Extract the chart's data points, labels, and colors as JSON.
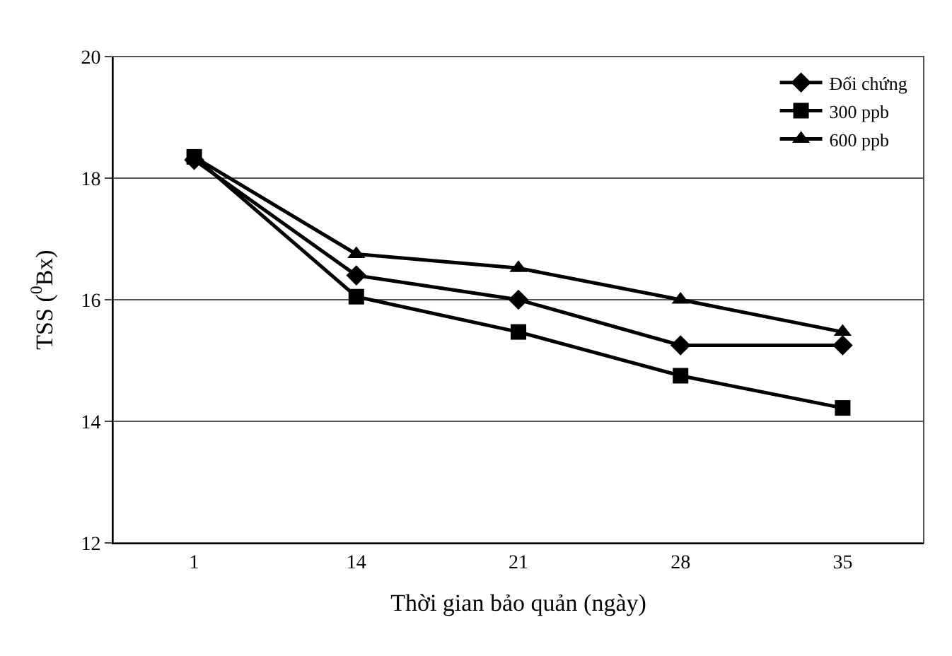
{
  "chart_data": {
    "type": "line",
    "xlabel": "Thời gian bảo quản (ngày)",
    "ylabel": "TSS ($^{0}$Bx)",
    "categories": [
      "1",
      "14",
      "21",
      "28",
      "35"
    ],
    "series": [
      {
        "name": "Đối chứng",
        "color": "#000000",
        "marker": "diamond",
        "values": [
          18.3,
          16.4,
          16.0,
          15.25,
          15.25
        ]
      },
      {
        "name": "300 ppb",
        "color": "#000000",
        "marker": "square",
        "values": [
          18.35,
          16.05,
          15.47,
          14.75,
          14.22
        ]
      },
      {
        "name": "600 ppb",
        "color": "#000000",
        "marker": "triangle",
        "values": [
          18.35,
          16.75,
          16.52,
          16.0,
          15.47
        ]
      }
    ],
    "ylim": [
      12,
      20
    ],
    "yticks": [
      12,
      14,
      16,
      18,
      20
    ],
    "grid": "y",
    "legend": "top right",
    "line_style": "solid"
  }
}
